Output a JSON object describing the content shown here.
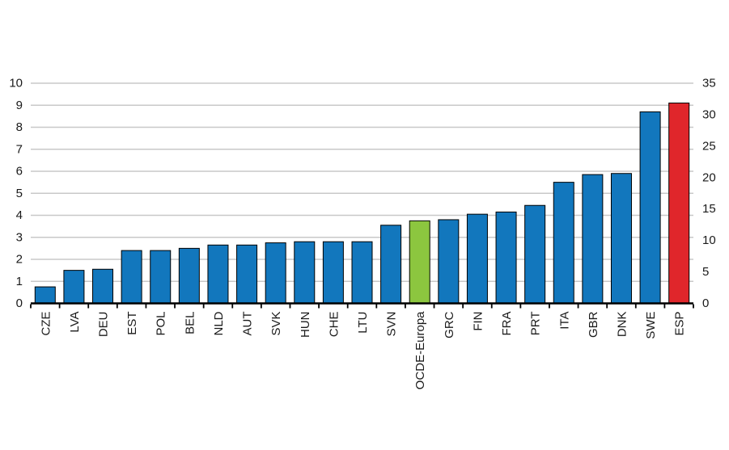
{
  "chart_data": {
    "type": "bar",
    "title": "",
    "xlabel": "",
    "ylabel": "",
    "grid": "horizontal",
    "legend": "none",
    "categories": [
      "CZE",
      "LVA",
      "DEU",
      "EST",
      "POL",
      "BEL",
      "NLD",
      "AUT",
      "SVK",
      "HUN",
      "CHE",
      "LTU",
      "SVN",
      "OCDE-Europa",
      "GRC",
      "FIN",
      "FRA",
      "PRT",
      "ITA",
      "GBR",
      "DNK",
      "SWE",
      "ESP"
    ],
    "bars": [
      {
        "label": "CZE",
        "value": 0.75,
        "color": "blue"
      },
      {
        "label": "LVA",
        "value": 1.5,
        "color": "blue"
      },
      {
        "label": "DEU",
        "value": 1.55,
        "color": "blue"
      },
      {
        "label": "EST",
        "value": 2.4,
        "color": "blue"
      },
      {
        "label": "POL",
        "value": 2.4,
        "color": "blue"
      },
      {
        "label": "BEL",
        "value": 2.5,
        "color": "blue"
      },
      {
        "label": "NLD",
        "value": 2.65,
        "color": "blue"
      },
      {
        "label": "AUT",
        "value": 2.65,
        "color": "blue"
      },
      {
        "label": "SVK",
        "value": 2.75,
        "color": "blue"
      },
      {
        "label": "HUN",
        "value": 2.8,
        "color": "blue"
      },
      {
        "label": "CHE",
        "value": 2.8,
        "color": "blue"
      },
      {
        "label": "LTU",
        "value": 2.8,
        "color": "blue"
      },
      {
        "label": "SVN",
        "value": 3.55,
        "color": "blue"
      },
      {
        "label": "OCDE-Europa",
        "value": 3.75,
        "color": "green"
      },
      {
        "label": "GRC",
        "value": 3.8,
        "color": "blue"
      },
      {
        "label": "FIN",
        "value": 4.05,
        "color": "blue"
      },
      {
        "label": "FRA",
        "value": 4.15,
        "color": "blue"
      },
      {
        "label": "PRT",
        "value": 4.45,
        "color": "blue"
      },
      {
        "label": "ITA",
        "value": 5.5,
        "color": "blue"
      },
      {
        "label": "GBR",
        "value": 5.85,
        "color": "blue"
      },
      {
        "label": "DNK",
        "value": 5.9,
        "color": "blue"
      },
      {
        "label": "SWE",
        "value": 8.7,
        "color": "blue"
      },
      {
        "label": "ESP",
        "value": 9.1,
        "color": "red"
      }
    ],
    "left_axis": {
      "min": 0,
      "max": 10,
      "step": 1,
      "ticks": [
        0,
        1,
        2,
        3,
        4,
        5,
        6,
        7,
        8,
        9,
        10
      ]
    },
    "right_axis": {
      "min": 0,
      "max": 35,
      "step": 5,
      "ticks": [
        0,
        5,
        10,
        15,
        20,
        25,
        30,
        35
      ]
    },
    "palette": {
      "blue": "#1277bd",
      "green": "#8cc63f",
      "red": "#e0262b"
    },
    "style_colors": {
      "gridline": "#c8c8c8",
      "axis_line": "#000000",
      "bar_border": "#000000",
      "tick_text": "#1a1a1a"
    }
  }
}
